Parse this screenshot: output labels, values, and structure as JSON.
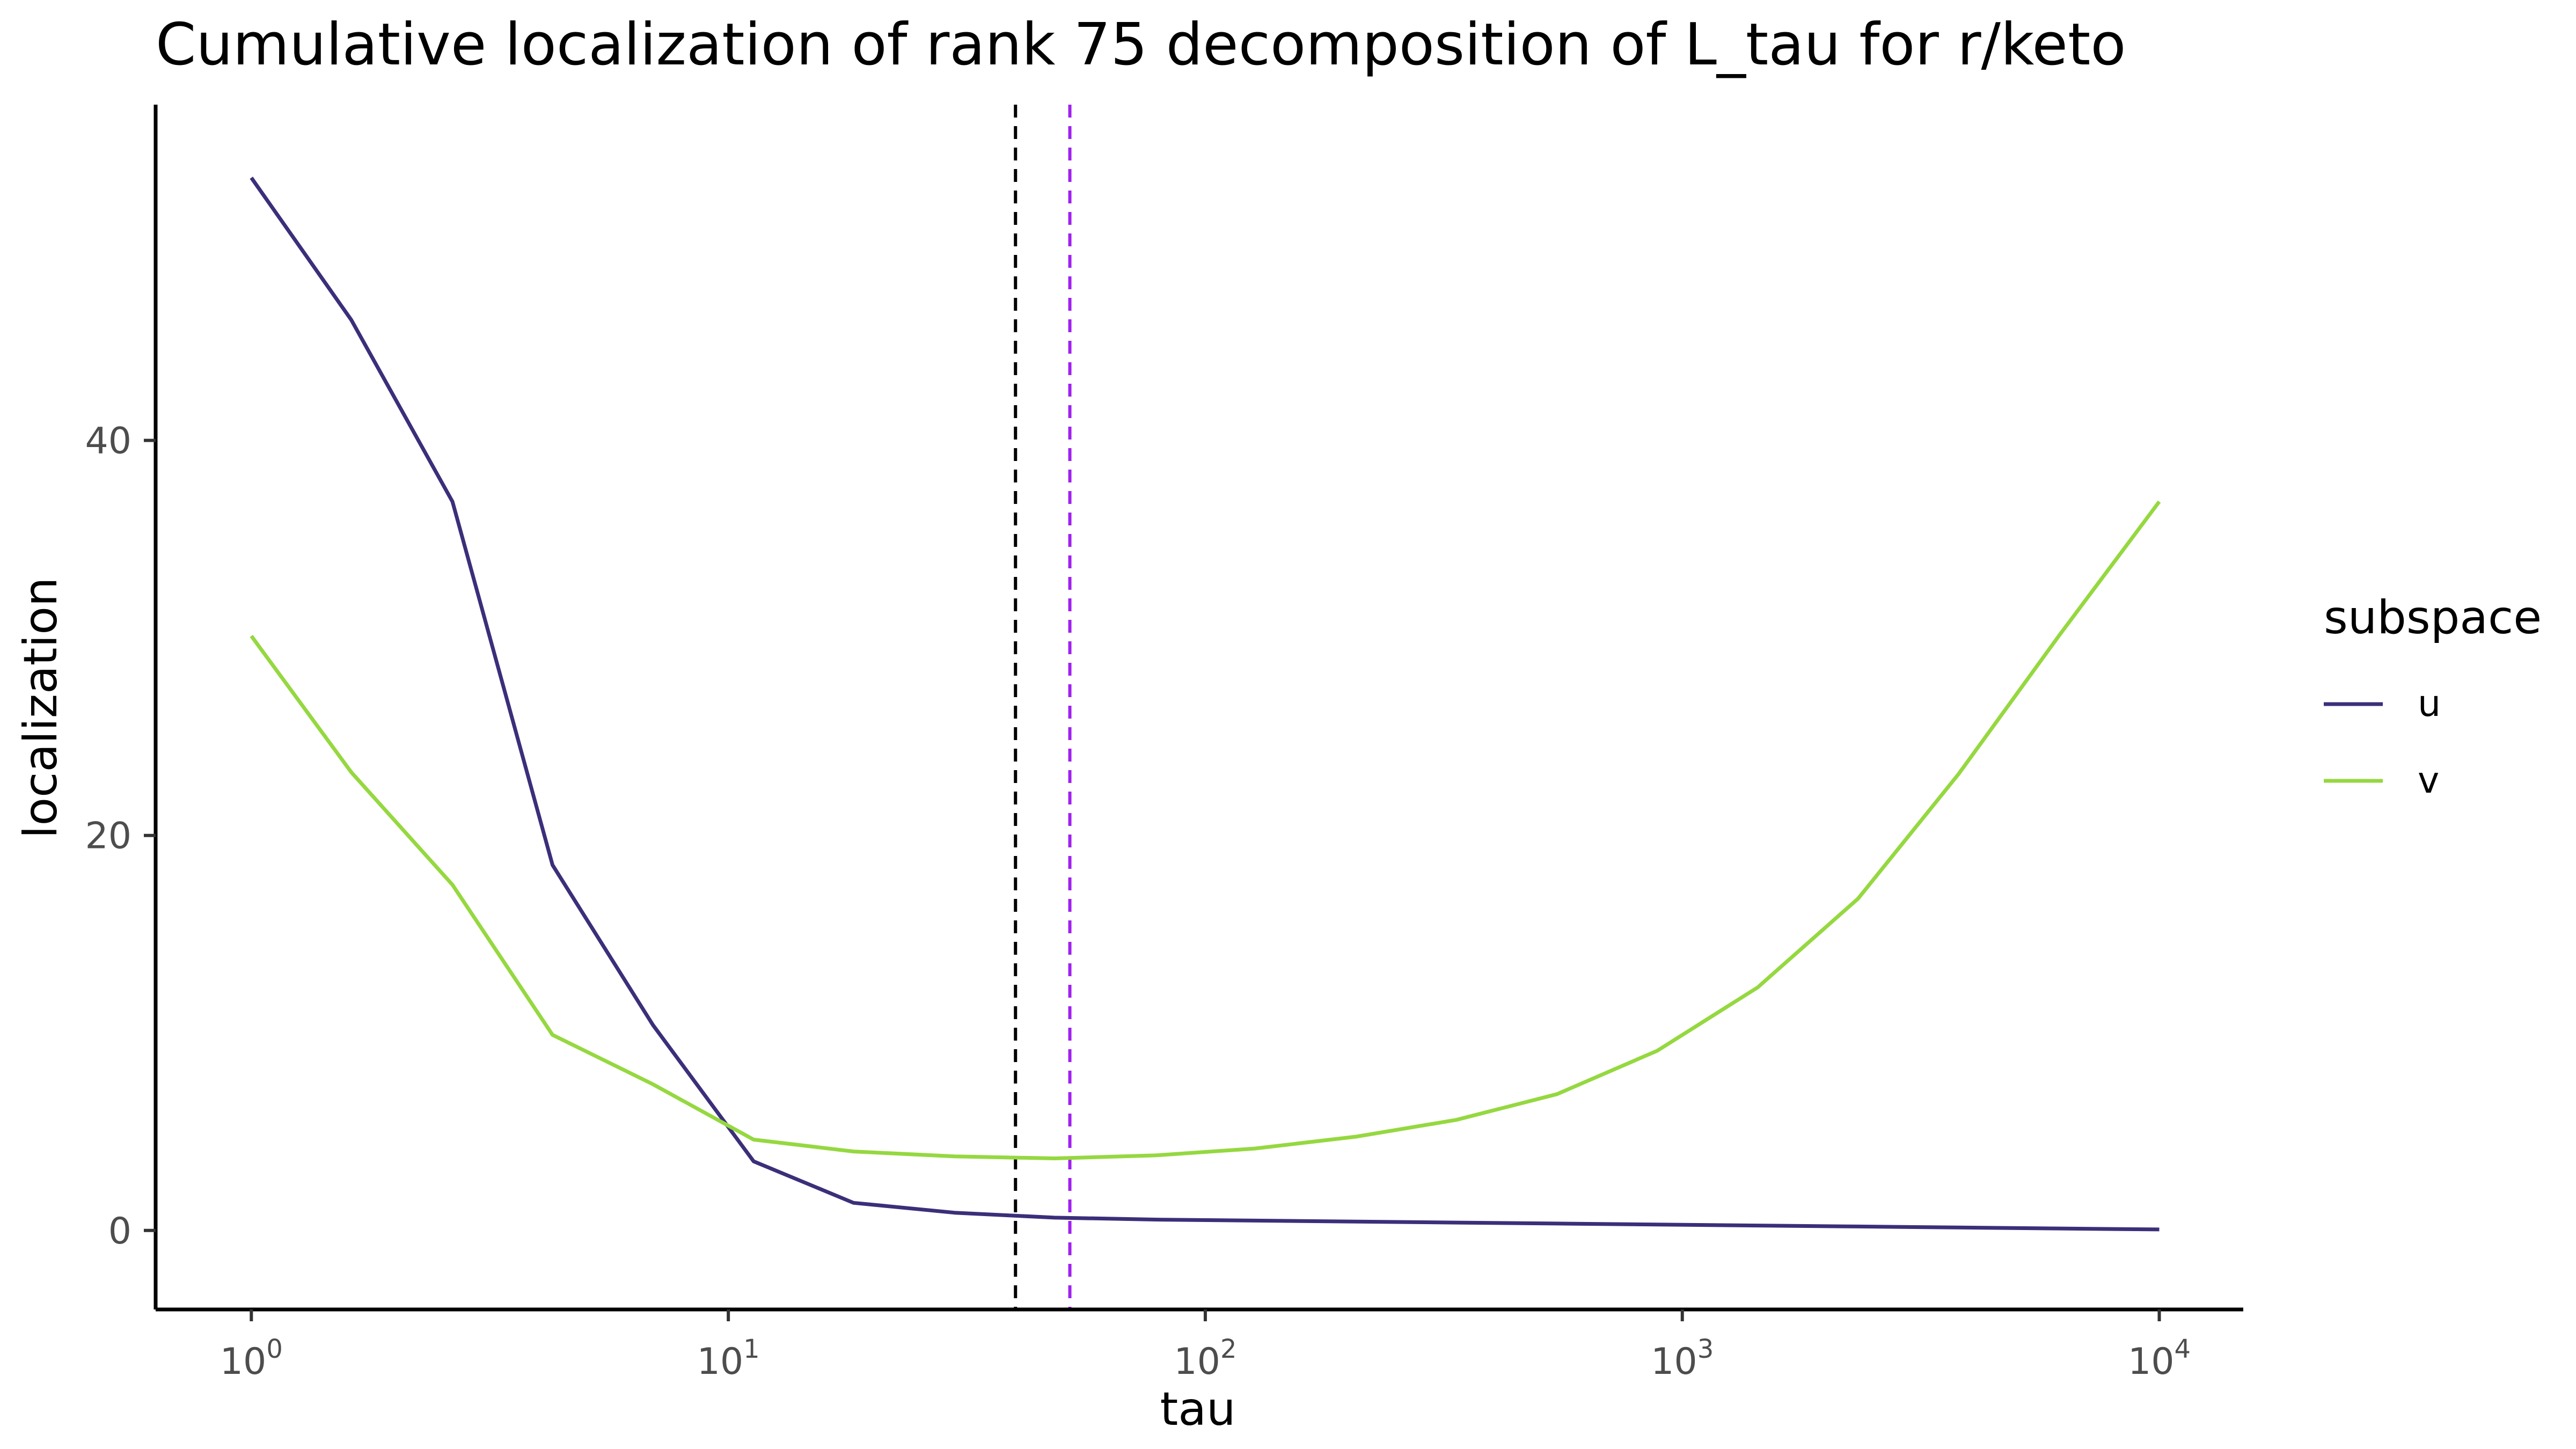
{
  "chart_data": {
    "type": "line",
    "title": "Cumulative localization of rank 75 decomposition of L_tau for r/keto",
    "xlabel": "tau",
    "ylabel": "localization",
    "x_scale": "log10",
    "xlim": [
      0.63,
      15000
    ],
    "ylim": [
      -4,
      57
    ],
    "x_ticks": [
      {
        "value": 1,
        "base": "10",
        "exp": "0"
      },
      {
        "value": 10,
        "base": "10",
        "exp": "1"
      },
      {
        "value": 100,
        "base": "10",
        "exp": "2"
      },
      {
        "value": 1000,
        "base": "10",
        "exp": "3"
      },
      {
        "value": 10000,
        "base": "10",
        "exp": "4"
      }
    ],
    "y_ticks": [
      {
        "value": 0,
        "label": "0"
      },
      {
        "value": 20,
        "label": "20"
      },
      {
        "value": 40,
        "label": "40"
      }
    ],
    "grid": false,
    "legend": {
      "title": "subspace",
      "placement": "right"
    },
    "series": [
      {
        "name": "u",
        "color": "#3b2f7a",
        "x": [
          1,
          1.62,
          2.64,
          4.28,
          6.95,
          11.3,
          18.3,
          29.8,
          48.3,
          78.5,
          127,
          207,
          336,
          546,
          886,
          1438,
          2336,
          3793,
          6158,
          10000
        ],
        "y": [
          53.3,
          46.1,
          36.9,
          18.5,
          10.4,
          3.5,
          1.4,
          0.9,
          0.65,
          0.55,
          0.5,
          0.45,
          0.4,
          0.35,
          0.3,
          0.25,
          0.2,
          0.15,
          0.1,
          0.05
        ]
      },
      {
        "name": "v",
        "color": "#95d840",
        "x": [
          1,
          1.62,
          2.64,
          4.28,
          6.95,
          11.3,
          18.3,
          29.8,
          48.3,
          78.5,
          127,
          207,
          336,
          546,
          886,
          1438,
          2336,
          3793,
          6158,
          10000
        ],
        "y": [
          30.1,
          23.2,
          17.5,
          9.9,
          7.4,
          4.6,
          4.0,
          3.75,
          3.65,
          3.8,
          4.15,
          4.75,
          5.6,
          6.9,
          9.1,
          12.3,
          16.8,
          23.1,
          30.1,
          36.9
        ]
      }
    ],
    "reference_lines": [
      {
        "axis": "x",
        "value": 40,
        "color": "#000000",
        "style": "dashed"
      },
      {
        "axis": "x",
        "value": 52,
        "color": "#a020f0",
        "style": "dashed"
      }
    ]
  }
}
